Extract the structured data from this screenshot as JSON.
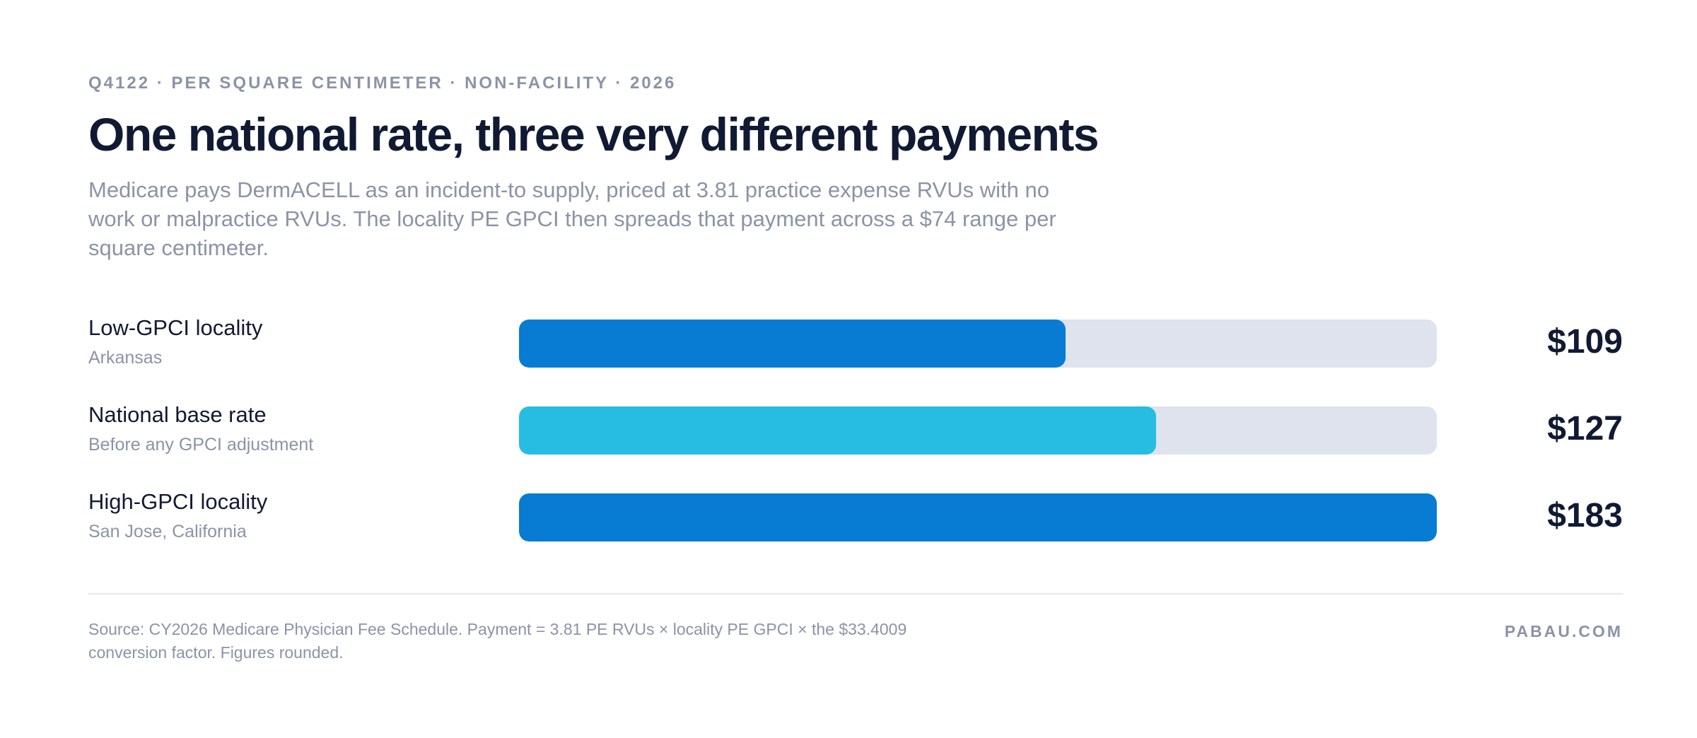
{
  "header": {
    "eyebrow": "Q4122 · PER SQUARE CENTIMETER · NON-FACILITY · 2026",
    "title": "One national rate, three very different payments",
    "subtitle": "Medicare pays DermACELL as an incident-to supply, priced at 3.81 practice expense RVUs with no work or malpractice RVUs. The locality PE GPCI then spreads that payment across a $74 range per square centimeter."
  },
  "chart_data": {
    "type": "bar",
    "orientation": "horizontal",
    "xlim": [
      0,
      183
    ],
    "grid": false,
    "rows": [
      {
        "label": "Low-GPCI locality",
        "sublabel": "Arkansas",
        "value": 109,
        "display": "$109",
        "color": "#087bd2"
      },
      {
        "label": "National base rate",
        "sublabel": "Before any GPCI adjustment",
        "value": 127,
        "display": "$127",
        "color": "#27bce2"
      },
      {
        "label": "High-GPCI locality",
        "sublabel": "San Jose, California",
        "value": 183,
        "display": "$183",
        "color": "#087bd2"
      }
    ],
    "track_color": "#dee3ee"
  },
  "footer": {
    "source": "Source: CY2026 Medicare Physician Fee Schedule. Payment = 3.81 PE RVUs × locality PE GPCI × the $33.4009 conversion factor. Figures rounded.",
    "brand": "PABAU.COM"
  }
}
